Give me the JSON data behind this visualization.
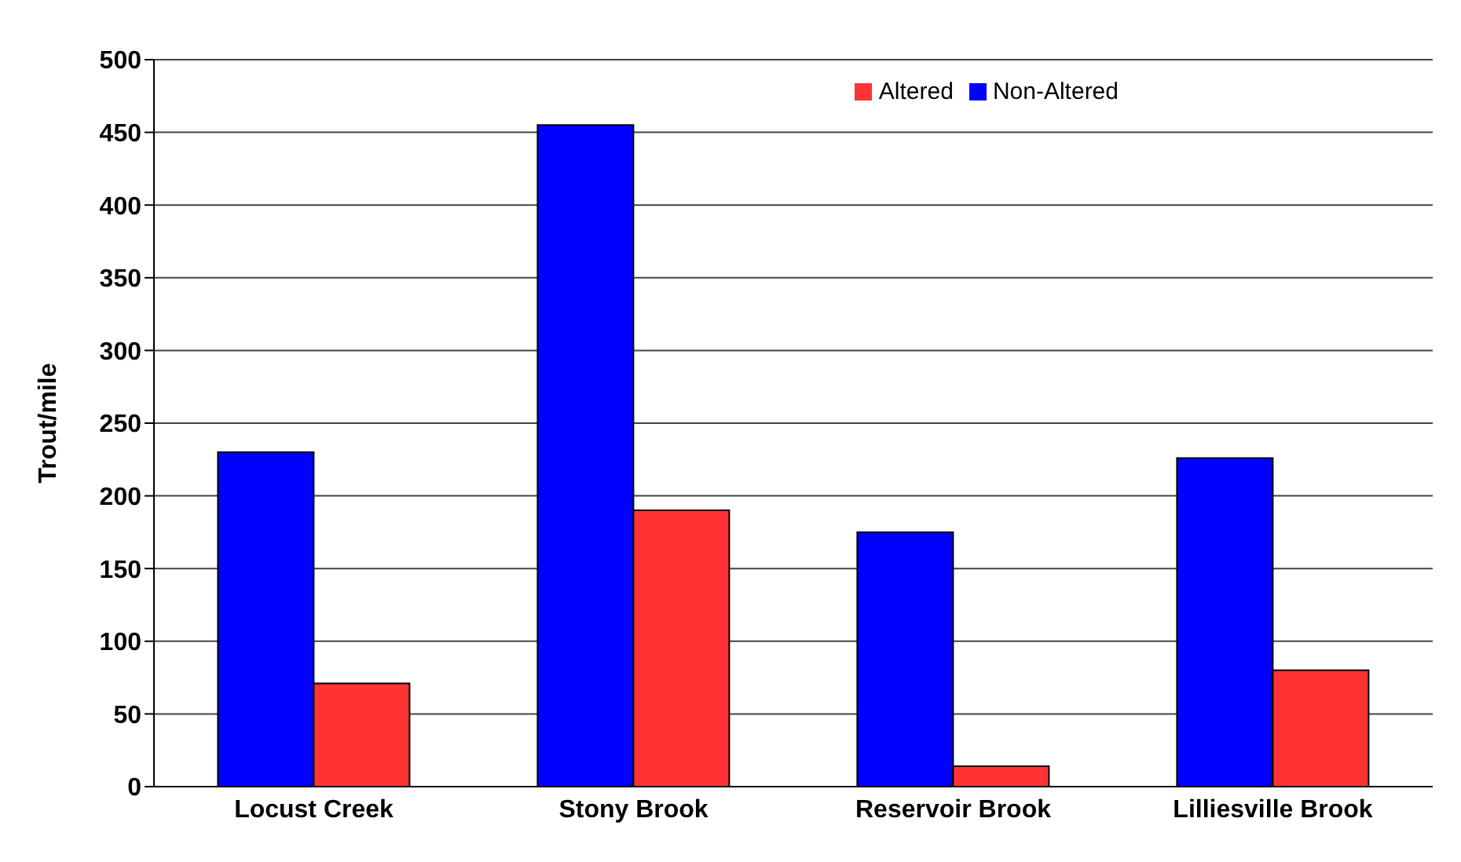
{
  "chart_data": {
    "type": "bar",
    "ylabel": "Trout/mile",
    "categories": [
      "Locust Creek",
      "Stony Brook",
      "Reservoir Brook",
      "Lilliesville Brook"
    ],
    "series": [
      {
        "name": "Non-Altered",
        "color": "#0000ff",
        "values": [
          230,
          455,
          175,
          226
        ]
      },
      {
        "name": "Altered",
        "color": "#ff3333",
        "values": [
          71,
          190,
          14,
          80
        ]
      }
    ],
    "ylim": [
      0,
      500
    ],
    "yticks": [
      0,
      50,
      100,
      150,
      200,
      250,
      300,
      350,
      400,
      450,
      500
    ],
    "grid": "y",
    "legend": "top right"
  }
}
